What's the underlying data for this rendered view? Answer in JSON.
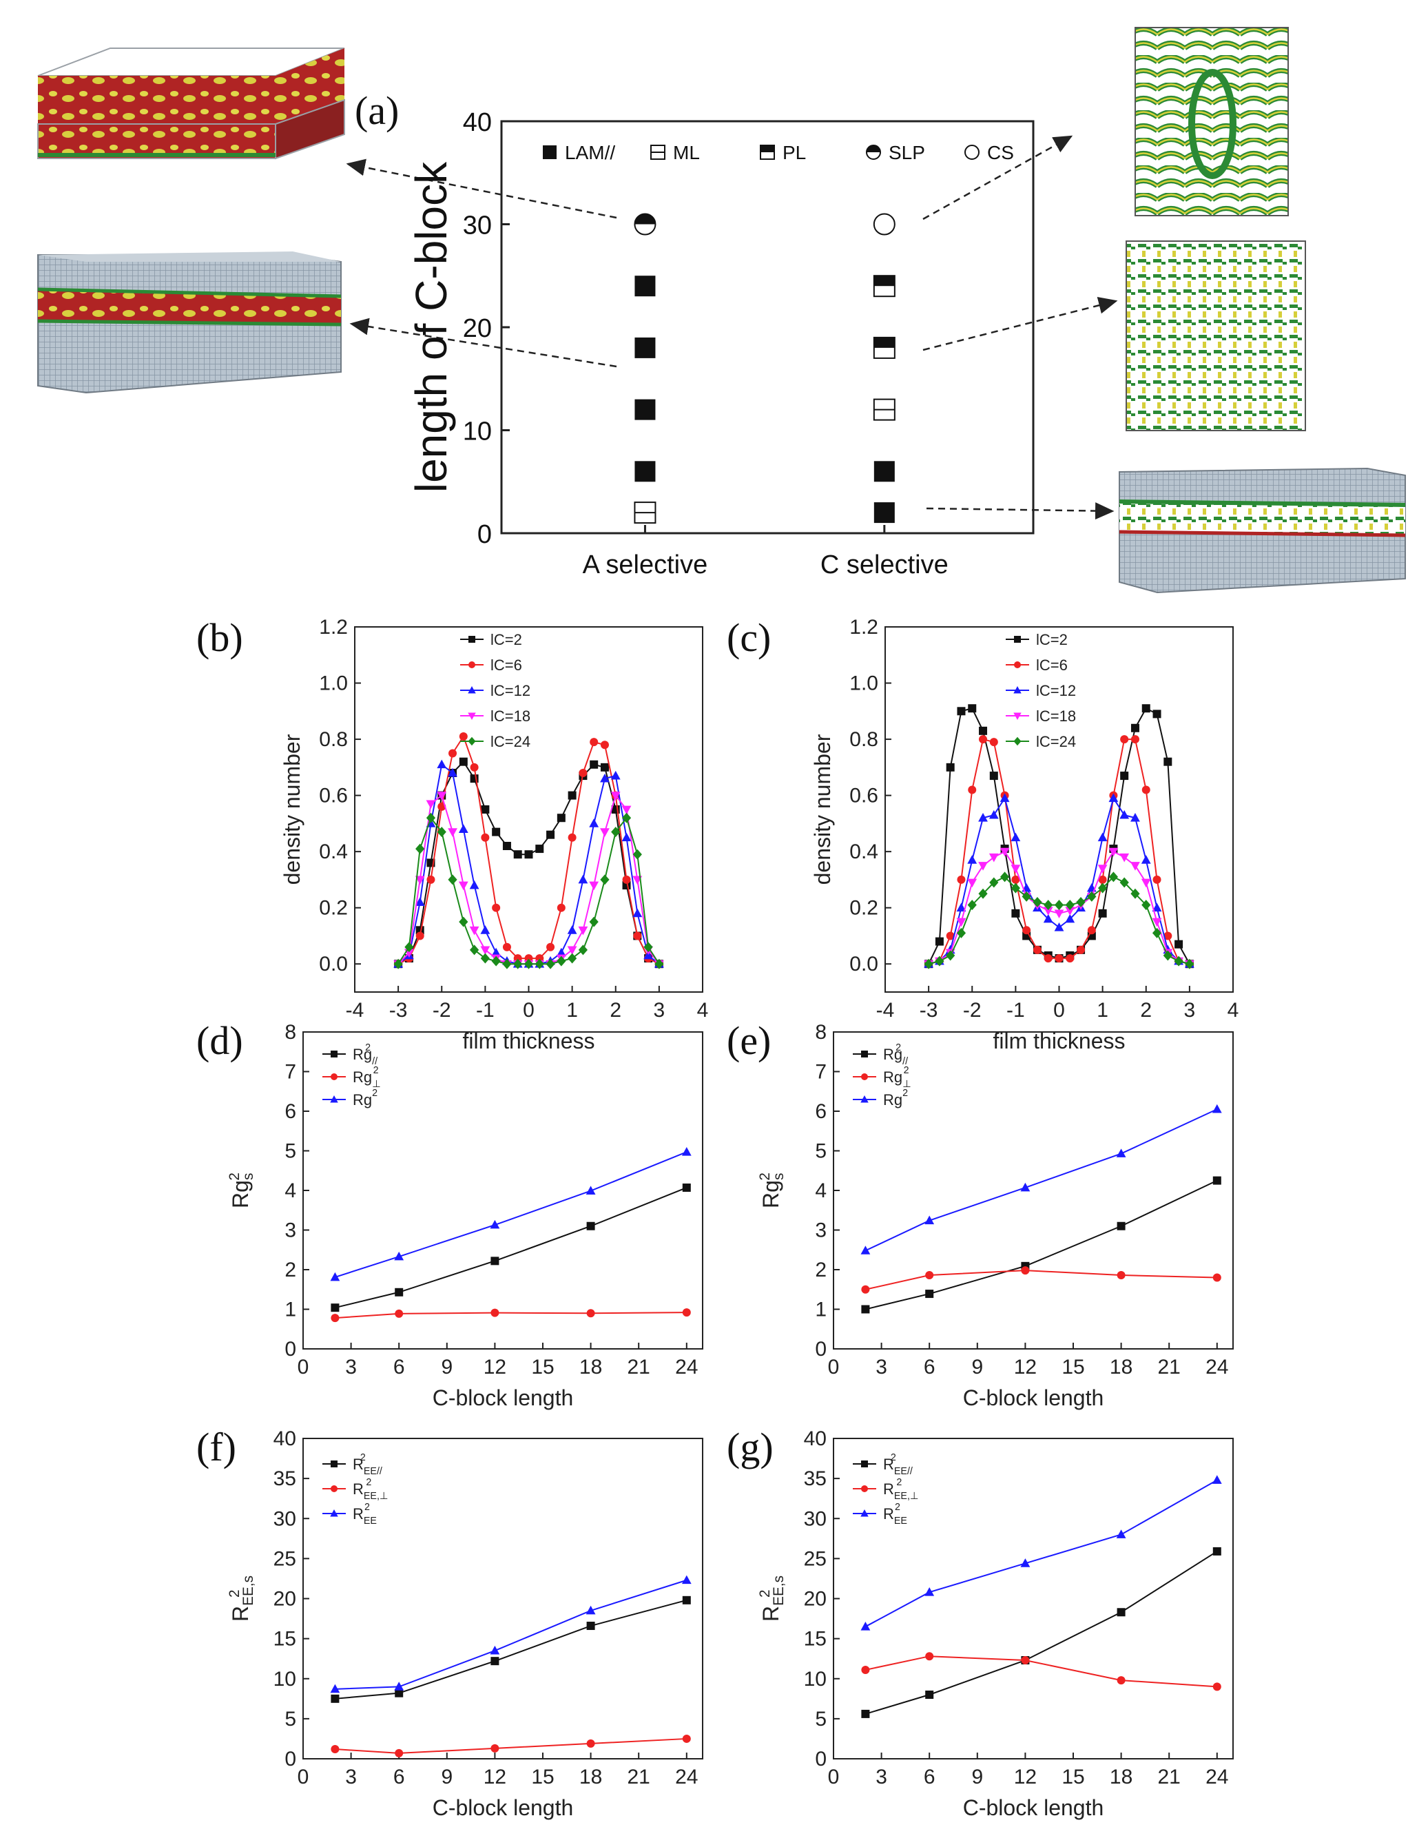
{
  "panel_labels": [
    "(a)",
    "(b)",
    "(c)",
    "(d)",
    "(e)",
    "(f)",
    "(g)"
  ],
  "colors": {
    "black": "#111111",
    "red": "#ee2222",
    "blue": "#1a1aff",
    "magenta": "#ff22ff",
    "green": "#1a8a1a"
  },
  "chart_data": [
    {
      "id": "a",
      "type": "scatter",
      "ylabel": "length of C-block",
      "ylim": [
        0,
        40
      ],
      "yticks": [
        0,
        10,
        20,
        30,
        40
      ],
      "categories": [
        "A selective",
        "C selective"
      ],
      "legend": [
        {
          "symbol": "filled",
          "label": "LAM//"
        },
        {
          "symbol": "boxplus",
          "label": "ML"
        },
        {
          "symbol": "halfsquare",
          "label": "PL"
        },
        {
          "symbol": "halfcircle",
          "label": "SLP"
        },
        {
          "symbol": "opencircle",
          "label": "CS"
        }
      ],
      "points": [
        {
          "cat": 0,
          "y": 2,
          "symbol": "boxplus"
        },
        {
          "cat": 0,
          "y": 6,
          "symbol": "filled"
        },
        {
          "cat": 0,
          "y": 12,
          "symbol": "filled"
        },
        {
          "cat": 0,
          "y": 18,
          "symbol": "filled"
        },
        {
          "cat": 0,
          "y": 24,
          "symbol": "filled"
        },
        {
          "cat": 0,
          "y": 30,
          "symbol": "halfcircle"
        },
        {
          "cat": 1,
          "y": 2,
          "symbol": "filled"
        },
        {
          "cat": 1,
          "y": 6,
          "symbol": "filled"
        },
        {
          "cat": 1,
          "y": 12,
          "symbol": "boxplus"
        },
        {
          "cat": 1,
          "y": 18,
          "symbol": "halfsquare"
        },
        {
          "cat": 1,
          "y": 24,
          "symbol": "halfsquare"
        },
        {
          "cat": 1,
          "y": 30,
          "symbol": "opencircle"
        }
      ]
    },
    {
      "id": "b",
      "type": "line",
      "xlabel": "film thickness",
      "ylabel": "density number",
      "xlim": [
        -4,
        4
      ],
      "ylim": [
        -0.1,
        1.2
      ],
      "xticks": [
        -4,
        -3,
        -2,
        -1,
        0,
        1,
        2,
        3,
        4
      ],
      "yticks": [
        0.0,
        0.2,
        0.4,
        0.6,
        0.8,
        1.0,
        1.2
      ],
      "x": [
        -3.0,
        -2.75,
        -2.5,
        -2.25,
        -2.0,
        -1.75,
        -1.5,
        -1.25,
        -1.0,
        -0.75,
        -0.5,
        -0.25,
        0.0,
        0.25,
        0.5,
        0.75,
        1.0,
        1.25,
        1.5,
        1.75,
        2.0,
        2.25,
        2.5,
        2.75,
        3.0
      ],
      "series": [
        {
          "name": "lC=2",
          "color": "#111111",
          "marker": "square",
          "values": [
            0.0,
            0.02,
            0.12,
            0.36,
            0.6,
            0.68,
            0.72,
            0.66,
            0.55,
            0.47,
            0.42,
            0.39,
            0.39,
            0.41,
            0.46,
            0.52,
            0.6,
            0.67,
            0.71,
            0.7,
            0.55,
            0.28,
            0.1,
            0.02,
            0.0
          ]
        },
        {
          "name": "lC=6",
          "color": "#ee2222",
          "marker": "circle",
          "values": [
            0.0,
            0.02,
            0.1,
            0.3,
            0.56,
            0.75,
            0.81,
            0.7,
            0.45,
            0.2,
            0.06,
            0.02,
            0.02,
            0.02,
            0.06,
            0.2,
            0.45,
            0.68,
            0.79,
            0.78,
            0.6,
            0.3,
            0.1,
            0.02,
            0.0
          ]
        },
        {
          "name": "lC=12",
          "color": "#1a1aff",
          "marker": "triangle",
          "values": [
            0.0,
            0.03,
            0.22,
            0.5,
            0.71,
            0.68,
            0.48,
            0.28,
            0.12,
            0.04,
            0.01,
            0.0,
            0.0,
            0.0,
            0.01,
            0.04,
            0.12,
            0.3,
            0.5,
            0.66,
            0.67,
            0.45,
            0.18,
            0.03,
            0.0
          ]
        },
        {
          "name": "lC=18",
          "color": "#ff22ff",
          "marker": "tridown",
          "values": [
            0.0,
            0.04,
            0.3,
            0.57,
            0.6,
            0.47,
            0.28,
            0.12,
            0.05,
            0.02,
            0.0,
            0.0,
            0.0,
            0.0,
            0.0,
            0.02,
            0.05,
            0.12,
            0.28,
            0.47,
            0.6,
            0.55,
            0.3,
            0.05,
            0.0
          ]
        },
        {
          "name": "lC=24",
          "color": "#1a8a1a",
          "marker": "diamond",
          "values": [
            0.0,
            0.06,
            0.41,
            0.52,
            0.47,
            0.3,
            0.15,
            0.05,
            0.02,
            0.01,
            0.0,
            0.0,
            0.0,
            0.0,
            0.0,
            0.01,
            0.02,
            0.05,
            0.15,
            0.3,
            0.47,
            0.52,
            0.39,
            0.06,
            0.0
          ]
        }
      ]
    },
    {
      "id": "c",
      "type": "line",
      "xlabel": "film thickness",
      "ylabel": "density number",
      "xlim": [
        -4,
        4
      ],
      "ylim": [
        -0.1,
        1.2
      ],
      "xticks": [
        -4,
        -3,
        -2,
        -1,
        0,
        1,
        2,
        3,
        4
      ],
      "yticks": [
        0.0,
        0.2,
        0.4,
        0.6,
        0.8,
        1.0,
        1.2
      ],
      "x": [
        -3.0,
        -2.75,
        -2.5,
        -2.25,
        -2.0,
        -1.75,
        -1.5,
        -1.25,
        -1.0,
        -0.75,
        -0.5,
        -0.25,
        0.0,
        0.25,
        0.5,
        0.75,
        1.0,
        1.25,
        1.5,
        1.75,
        2.0,
        2.25,
        2.5,
        2.75,
        3.0
      ],
      "series": [
        {
          "name": "lC=2",
          "color": "#111111",
          "marker": "square",
          "values": [
            0.0,
            0.08,
            0.7,
            0.9,
            0.91,
            0.83,
            0.67,
            0.41,
            0.18,
            0.1,
            0.05,
            0.03,
            0.02,
            0.03,
            0.05,
            0.1,
            0.18,
            0.41,
            0.67,
            0.84,
            0.91,
            0.89,
            0.72,
            0.07,
            0.0
          ]
        },
        {
          "name": "lC=6",
          "color": "#ee2222",
          "marker": "circle",
          "values": [
            0.0,
            0.01,
            0.1,
            0.3,
            0.62,
            0.8,
            0.79,
            0.6,
            0.3,
            0.12,
            0.05,
            0.02,
            0.02,
            0.02,
            0.05,
            0.12,
            0.3,
            0.6,
            0.8,
            0.8,
            0.62,
            0.3,
            0.1,
            0.01,
            0.0
          ]
        },
        {
          "name": "lC=12",
          "color": "#1a1aff",
          "marker": "triangle",
          "values": [
            0.0,
            0.01,
            0.05,
            0.2,
            0.37,
            0.52,
            0.53,
            0.59,
            0.45,
            0.27,
            0.2,
            0.16,
            0.13,
            0.16,
            0.2,
            0.27,
            0.45,
            0.59,
            0.53,
            0.52,
            0.37,
            0.2,
            0.05,
            0.01,
            0.0
          ]
        },
        {
          "name": "lC=18",
          "color": "#ff22ff",
          "marker": "tridown",
          "values": [
            0.0,
            0.01,
            0.04,
            0.15,
            0.29,
            0.35,
            0.38,
            0.4,
            0.34,
            0.24,
            0.21,
            0.19,
            0.18,
            0.19,
            0.21,
            0.24,
            0.34,
            0.4,
            0.38,
            0.35,
            0.29,
            0.15,
            0.04,
            0.01,
            0.0
          ]
        },
        {
          "name": "lC=24",
          "color": "#1a8a1a",
          "marker": "diamond",
          "values": [
            0.0,
            0.01,
            0.03,
            0.11,
            0.21,
            0.25,
            0.29,
            0.31,
            0.27,
            0.24,
            0.22,
            0.21,
            0.21,
            0.21,
            0.22,
            0.24,
            0.27,
            0.31,
            0.29,
            0.25,
            0.21,
            0.11,
            0.03,
            0.01,
            0.0
          ]
        }
      ]
    },
    {
      "id": "d",
      "type": "line",
      "xlabel": "C-block length",
      "ylabel": "Rg",
      "ylabel_sup": "2",
      "ylabel_sub": "s",
      "xlim": [
        0,
        25
      ],
      "ylim": [
        0,
        8
      ],
      "xticks": [
        0,
        3,
        6,
        9,
        12,
        15,
        18,
        21,
        24
      ],
      "yticks": [
        0,
        1,
        2,
        3,
        4,
        5,
        6,
        7,
        8
      ],
      "x": [
        2,
        6,
        12,
        18,
        24
      ],
      "series": [
        {
          "name": "Rg",
          "name_sup": "2",
          "name_sub": "//",
          "color": "#111111",
          "marker": "square",
          "values": [
            1.04,
            1.43,
            2.22,
            3.1,
            4.07
          ]
        },
        {
          "name": "Rg",
          "name_sup": "2",
          "name_sub": "⊥",
          "color": "#ee2222",
          "marker": "circle",
          "values": [
            0.78,
            0.89,
            0.91,
            0.9,
            0.92
          ]
        },
        {
          "name": "Rg",
          "name_sup": "2",
          "name_sub": "",
          "color": "#1a1aff",
          "marker": "triangle",
          "values": [
            1.81,
            2.33,
            3.13,
            3.99,
            4.97
          ]
        }
      ]
    },
    {
      "id": "e",
      "type": "line",
      "xlabel": "C-block length",
      "ylabel": "Rg",
      "ylabel_sup": "2",
      "ylabel_sub": "s",
      "xlim": [
        0,
        25
      ],
      "ylim": [
        0,
        8
      ],
      "xticks": [
        0,
        3,
        6,
        9,
        12,
        15,
        18,
        21,
        24
      ],
      "yticks": [
        0,
        1,
        2,
        3,
        4,
        5,
        6,
        7,
        8
      ],
      "x": [
        2,
        6,
        12,
        18,
        24
      ],
      "series": [
        {
          "name": "Rg",
          "name_sup": "2",
          "name_sub": "//",
          "color": "#111111",
          "marker": "square",
          "values": [
            1.0,
            1.39,
            2.09,
            3.1,
            4.25
          ]
        },
        {
          "name": "Rg",
          "name_sup": "2",
          "name_sub": "⊥",
          "color": "#ee2222",
          "marker": "circle",
          "values": [
            1.5,
            1.86,
            1.98,
            1.86,
            1.8
          ]
        },
        {
          "name": "Rg",
          "name_sup": "2",
          "name_sub": "",
          "color": "#1a1aff",
          "marker": "triangle",
          "values": [
            2.48,
            3.24,
            4.07,
            4.93,
            6.05
          ]
        }
      ]
    },
    {
      "id": "f",
      "type": "line",
      "xlabel": "C-block length",
      "ylabel": "R",
      "ylabel_sup": "2",
      "ylabel_sub": "EE,s",
      "xlim": [
        0,
        25
      ],
      "ylim": [
        0,
        40
      ],
      "xticks": [
        0,
        3,
        6,
        9,
        12,
        15,
        18,
        21,
        24
      ],
      "yticks": [
        0,
        5,
        10,
        15,
        20,
        25,
        30,
        35,
        40
      ],
      "x": [
        2,
        6,
        12,
        18,
        24
      ],
      "series": [
        {
          "name": "R",
          "name_sup": "2",
          "name_sub": "EE//",
          "color": "#111111",
          "marker": "square",
          "values": [
            7.5,
            8.2,
            12.2,
            16.6,
            19.8
          ]
        },
        {
          "name": "R",
          "name_sup": "2",
          "name_sub": "EE,⊥",
          "color": "#ee2222",
          "marker": "circle",
          "values": [
            1.2,
            0.7,
            1.3,
            1.9,
            2.5
          ]
        },
        {
          "name": "R",
          "name_sup": "2",
          "name_sub": "EE",
          "color": "#1a1aff",
          "marker": "triangle",
          "values": [
            8.7,
            9.0,
            13.5,
            18.5,
            22.3
          ]
        }
      ]
    },
    {
      "id": "g",
      "type": "line",
      "xlabel": "C-block length",
      "ylabel": "R",
      "ylabel_sup": "2",
      "ylabel_sub": "EE,s",
      "xlim": [
        0,
        25
      ],
      "ylim": [
        0,
        40
      ],
      "xticks": [
        0,
        3,
        6,
        9,
        12,
        15,
        18,
        21,
        24
      ],
      "yticks": [
        0,
        5,
        10,
        15,
        20,
        25,
        30,
        35,
        40
      ],
      "x": [
        2,
        6,
        12,
        18,
        24
      ],
      "series": [
        {
          "name": "R",
          "name_sup": "2",
          "name_sub": "EE//",
          "color": "#111111",
          "marker": "square",
          "values": [
            5.6,
            8.0,
            12.3,
            18.3,
            25.9
          ]
        },
        {
          "name": "R",
          "name_sup": "2",
          "name_sub": "EE,⊥",
          "color": "#ee2222",
          "marker": "circle",
          "values": [
            11.1,
            12.8,
            12.3,
            9.8,
            9.0
          ]
        },
        {
          "name": "R",
          "name_sup": "2",
          "name_sub": "EE",
          "color": "#1a1aff",
          "marker": "triangle",
          "values": [
            16.5,
            20.8,
            24.4,
            28.0,
            34.8
          ]
        }
      ]
    }
  ]
}
